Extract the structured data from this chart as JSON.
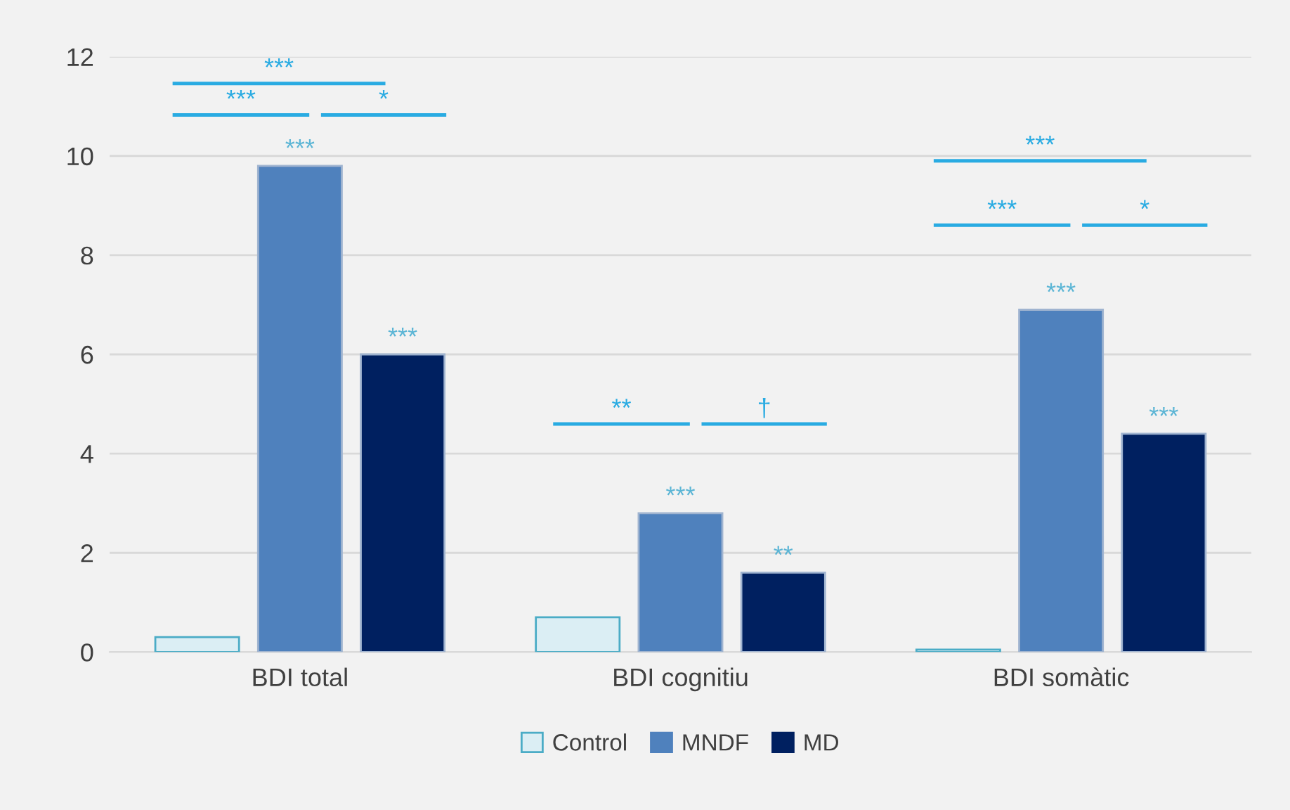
{
  "chart_data": {
    "type": "bar",
    "categories": [
      "BDI total",
      "BDI cognitiu",
      "BDI somàtic"
    ],
    "series": [
      {
        "name": "Control",
        "color": "#dbeef4",
        "values": [
          0.3,
          0.7,
          0.05
        ]
      },
      {
        "name": "MNDF",
        "color": "#4f81bd",
        "values": [
          9.8,
          2.8,
          6.9
        ],
        "value_labels": [
          "***",
          "***",
          "***"
        ]
      },
      {
        "name": "MD",
        "color": "#002060",
        "values": [
          6.0,
          1.6,
          4.4
        ],
        "value_labels": [
          "***",
          "**",
          "***"
        ]
      }
    ],
    "annotations": [
      "***",
      "***",
      "*",
      "**",
      "†",
      "***",
      "***",
      "*"
    ],
    "ylim": [
      0,
      12
    ],
    "yticks": [
      0,
      2,
      4,
      6,
      8,
      10,
      12
    ],
    "grid": "y",
    "legend": "bottom"
  }
}
